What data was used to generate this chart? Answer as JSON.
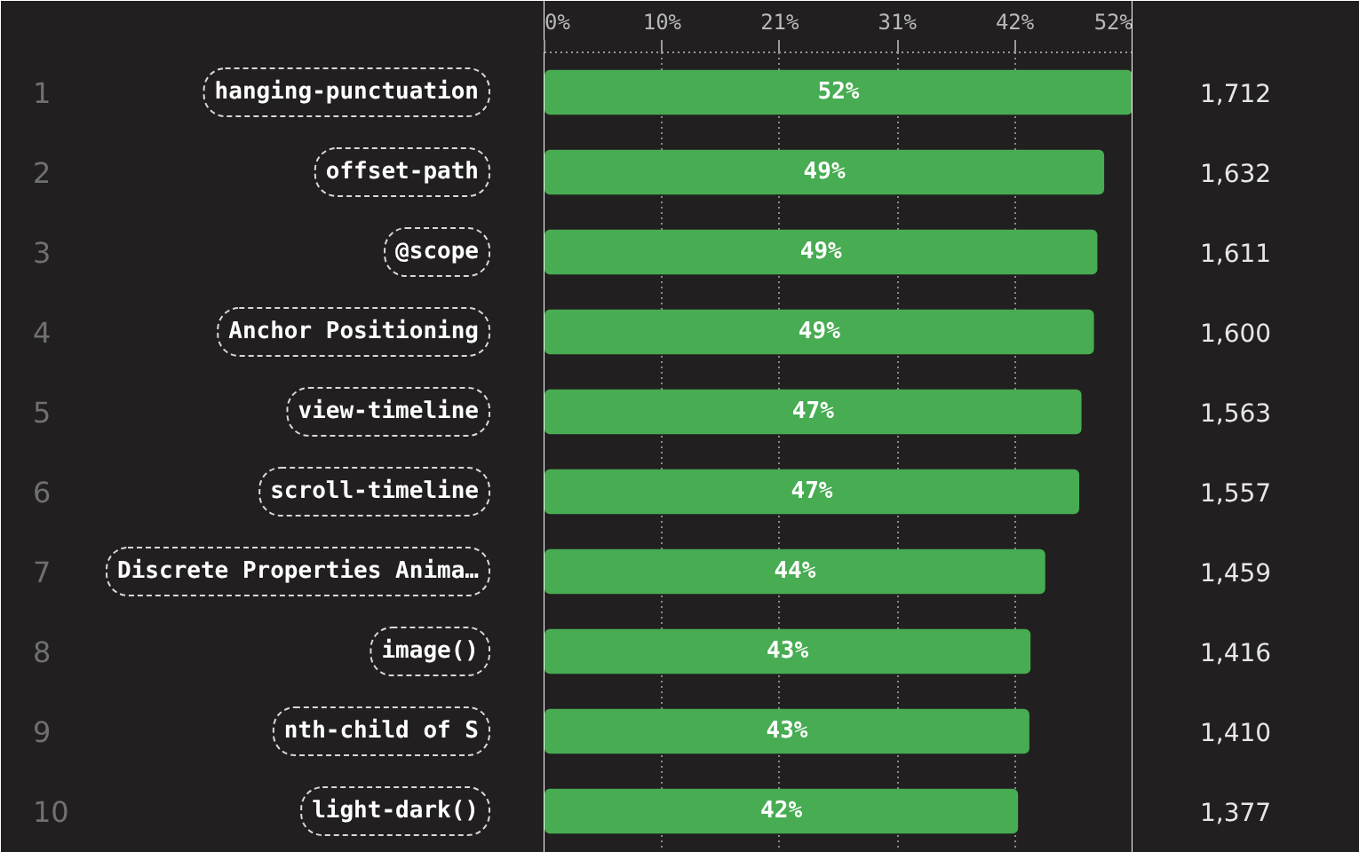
{
  "chart_data": {
    "type": "bar",
    "orientation": "horizontal",
    "categories": [
      "hanging-punctuation",
      "offset-path",
      "@scope",
      "Anchor Positioning",
      "view-timeline",
      "scroll-timeline",
      "Discrete Properties Anima…",
      "image()",
      "nth-child of S",
      "light-dark()"
    ],
    "values": [
      51.9,
      49.4,
      48.8,
      48.5,
      47.4,
      47.2,
      44.2,
      42.9,
      42.8,
      41.8
    ],
    "value_labels": [
      "52%",
      "49%",
      "49%",
      "49%",
      "47%",
      "47%",
      "44%",
      "43%",
      "43%",
      "42%"
    ],
    "color": "#47ac52",
    "xlim": [
      0,
      51.9
    ],
    "xticks": [
      {
        "value": 0,
        "label": "0%"
      },
      {
        "value": 10.38,
        "label": "10%"
      },
      {
        "value": 20.76,
        "label": "21%"
      },
      {
        "value": 31.14,
        "label": "31%"
      },
      {
        "value": 41.52,
        "label": "42%"
      },
      {
        "value": 51.9,
        "label": "52%"
      }
    ],
    "grid": "x",
    "annotations": [
      "1",
      "2",
      "3",
      "4",
      "5",
      "6",
      "7",
      "8",
      "9",
      "10",
      "1,712",
      "1,632",
      "1,611",
      "1,600",
      "1,563",
      "1,557",
      "1,459",
      "1,416",
      "1,410",
      "1,377"
    ]
  }
}
